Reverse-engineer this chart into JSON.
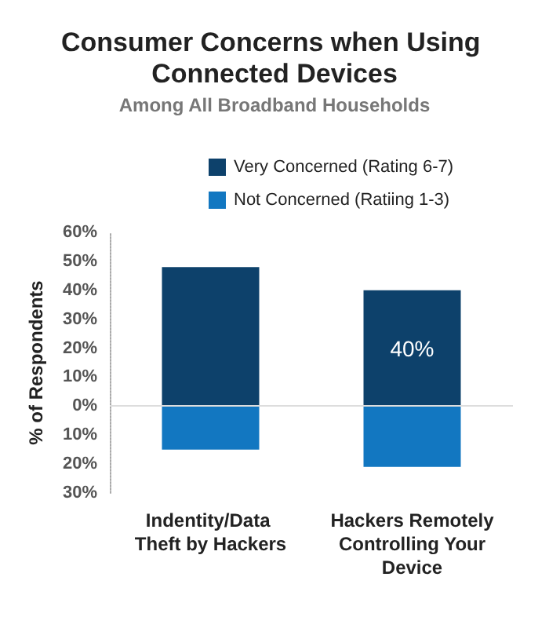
{
  "chart_data": {
    "type": "bar",
    "title": "Consumer Concerns when Using Connected Devices",
    "subtitle": "Among All Broadband Households",
    "ylabel": "% of Respondents",
    "categories": [
      "Indentity/Data Theft by Hackers",
      "Hackers Remotely Controlling Your Device"
    ],
    "series": [
      {
        "name": "Very Concerned (Rating 6-7)",
        "color": "#0d416b",
        "values": [
          48,
          40
        ],
        "value_labels": [
          null,
          "40%"
        ]
      },
      {
        "name": "Not Concerned (Ratiing 1-3)",
        "color": "#1277c1",
        "values": [
          -15,
          -21
        ]
      }
    ],
    "stacked": true,
    "ylim": [
      -30,
      60
    ],
    "yticks": [
      {
        "value": -30,
        "label": "30%"
      },
      {
        "value": -20,
        "label": "20%"
      },
      {
        "value": -10,
        "label": "10%"
      },
      {
        "value": 0,
        "label": "0%"
      },
      {
        "value": 10,
        "label": "10%"
      },
      {
        "value": 20,
        "label": "20%"
      },
      {
        "value": 30,
        "label": "30%"
      },
      {
        "value": 40,
        "label": "40%"
      },
      {
        "value": 50,
        "label": "50%"
      },
      {
        "value": 60,
        "label": "60%"
      }
    ],
    "ref_lines": [
      {
        "axis": "y",
        "value": 0,
        "color": "#dddddd"
      }
    ],
    "grid": false,
    "legend": "top"
  }
}
